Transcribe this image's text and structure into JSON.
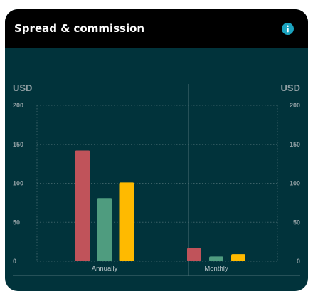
{
  "header": {
    "title": "Spread & commission",
    "info_icon": "info-icon"
  },
  "colors": {
    "header_bg": "#000000",
    "card_bg": "#01333b",
    "info": "#1ba3bf",
    "series_1": "#c0535a",
    "series_2": "#4f9c7f",
    "series_3": "#ffba00"
  },
  "chart_data": {
    "type": "bar",
    "ylabel_left": "USD",
    "ylabel_right": "USD",
    "categories": [
      "Annually",
      "Monthly"
    ],
    "series": [
      {
        "values": [
          142,
          17
        ],
        "color": "#c0535a"
      },
      {
        "values": [
          81,
          6
        ],
        "color": "#4f9c7f"
      },
      {
        "values": [
          101,
          9
        ],
        "color": "#ffba00"
      }
    ],
    "ylim": [
      0,
      200
    ],
    "yticks": [
      0,
      50,
      100,
      150,
      200
    ],
    "grid": true
  }
}
